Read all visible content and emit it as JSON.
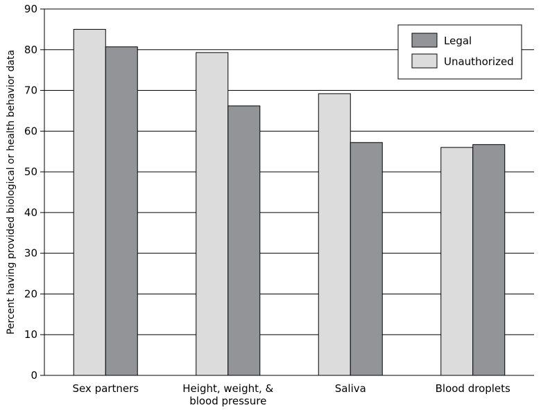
{
  "chart_data": {
    "type": "bar",
    "categories": [
      [
        "Sex partners"
      ],
      [
        "Height, weight, &",
        "blood pressure"
      ],
      [
        "Saliva"
      ],
      [
        "Blood droplets"
      ]
    ],
    "series": [
      {
        "name": "Unauthorized",
        "color": "#dcdcdc",
        "values": [
          85,
          79.3,
          69.2,
          56
        ]
      },
      {
        "name": "Legal",
        "color": "#929497",
        "values": [
          80.7,
          66.2,
          57.2,
          56.7
        ]
      }
    ],
    "legend_order": [
      "Legal",
      "Unauthorized"
    ],
    "legend_position": "top-right",
    "ylabel": "Percent having provided biological or health behavior data",
    "xlabel": "",
    "ylim": [
      0,
      90
    ],
    "yticks": [
      0,
      10,
      20,
      30,
      40,
      50,
      60,
      70,
      80,
      90
    ],
    "grid": true
  }
}
